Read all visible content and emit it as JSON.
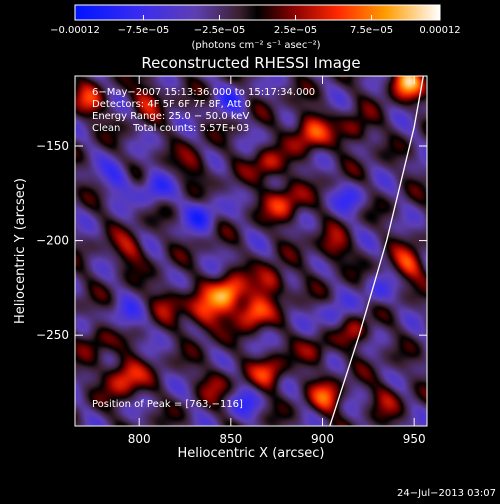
{
  "chart_data": {
    "type": "heatmap",
    "title": "Reconstructed RHESSI Image",
    "xlabel": "Heliocentric X (arcsec)",
    "ylabel": "Heliocentric Y (arcsec)",
    "xlim": [
      765,
      957
    ],
    "ylim": [
      -298,
      -113
    ],
    "x_ticks": [
      800,
      850,
      900,
      950
    ],
    "y_ticks": [
      -150,
      -200,
      -250
    ],
    "x_tick_labels": [
      "800",
      "850",
      "900",
      "950"
    ],
    "y_tick_labels": [
      "−150",
      "−200",
      "−250"
    ],
    "colorbar": {
      "min": -0.00012,
      "max": 0.00012,
      "tick_values": [
        -0.00012,
        -7.5e-05,
        -2.5e-05,
        2.5e-05,
        7.5e-05,
        0.00012
      ],
      "tick_labels": [
        "−0.00012",
        "−7.5e−05",
        "−2.5e−05",
        "2.5e−05",
        "7.5e−05",
        "0.00012"
      ],
      "units_label": "(photons cm⁻² s⁻¹ asec⁻²)"
    },
    "annotations": [
      "6−May−2007 15:13:36.000 to 15:17:34.000",
      "Detectors: 4F 5F 6F 7F 8F, Att 0",
      "Energy Range: 25.0 − 50.0 keV",
      "Clean    Total counts: 5.57E+03"
    ],
    "peak_label": "Position of Peak = [763,−116]",
    "peak_position": [
      763,
      -116
    ],
    "limb_curve": [
      [
        904,
        -298
      ],
      [
        920,
        -250
      ],
      [
        935,
        -200
      ],
      [
        950,
        -140
      ],
      [
        955,
        -113
      ]
    ],
    "image_sources": [
      {
        "x": 849,
        "y": -228,
        "amp": 0.000115,
        "sigma": 6
      },
      {
        "x": 836,
        "y": -238,
        "amp": 8e-05,
        "sigma": 7
      },
      {
        "x": 862,
        "y": -238,
        "amp": 9e-05,
        "sigma": 6
      },
      {
        "x": 872,
        "y": -222,
        "amp": 7e-05,
        "sigma": 6
      },
      {
        "x": 879,
        "y": -180,
        "amp": 7e-05,
        "sigma": 7
      },
      {
        "x": 893,
        "y": -143,
        "amp": 8e-05,
        "sigma": 7
      },
      {
        "x": 870,
        "y": -160,
        "amp": 6e-05,
        "sigma": 6
      },
      {
        "x": 772,
        "y": -127,
        "amp": 6e-05,
        "sigma": 6
      },
      {
        "x": 804,
        "y": -125,
        "amp": 5e-05,
        "sigma": 6
      },
      {
        "x": 830,
        "y": -160,
        "amp": 4e-05,
        "sigma": 6
      },
      {
        "x": 946,
        "y": -116,
        "amp": 0.00011,
        "sigma": 6
      },
      {
        "x": 918,
        "y": -142,
        "amp": 5e-05,
        "sigma": 6
      },
      {
        "x": 906,
        "y": -204,
        "amp": 5e-05,
        "sigma": 6
      },
      {
        "x": 918,
        "y": -248,
        "amp": 5e-05,
        "sigma": 6
      },
      {
        "x": 947,
        "y": -213,
        "amp": 7e-05,
        "sigma": 6
      },
      {
        "x": 792,
        "y": -272,
        "amp": 8e-05,
        "sigma": 7
      },
      {
        "x": 777,
        "y": -252,
        "amp": 4e-05,
        "sigma": 6
      },
      {
        "x": 842,
        "y": -275,
        "amp": 4e-05,
        "sigma": 6
      },
      {
        "x": 871,
        "y": -270,
        "amp": 7e-05,
        "sigma": 6
      },
      {
        "x": 902,
        "y": -283,
        "amp": 7e-05,
        "sigma": 6
      },
      {
        "x": 935,
        "y": -283,
        "amp": 4e-05,
        "sigma": 6
      },
      {
        "x": 795,
        "y": -205,
        "amp": 5e-05,
        "sigma": 6
      },
      {
        "x": 816,
        "y": -232,
        "amp": 4e-05,
        "sigma": 6
      },
      {
        "x": 897,
        "y": -258,
        "amp": 4e-05,
        "sigma": 6
      },
      {
        "x": 834,
        "y": -186,
        "amp": -6e-05,
        "sigma": 6
      },
      {
        "x": 808,
        "y": -173,
        "amp": -5e-05,
        "sigma": 6
      },
      {
        "x": 793,
        "y": -241,
        "amp": -4e-05,
        "sigma": 6
      },
      {
        "x": 788,
        "y": -167,
        "amp": -5e-05,
        "sigma": 6
      },
      {
        "x": 858,
        "y": -286,
        "amp": -4e-05,
        "sigma": 6
      },
      {
        "x": 906,
        "y": -241,
        "amp": -4e-05,
        "sigma": 6
      },
      {
        "x": 930,
        "y": -228,
        "amp": -4e-05,
        "sigma": 6
      },
      {
        "x": 915,
        "y": -178,
        "amp": -4e-05,
        "sigma": 6
      },
      {
        "x": 850,
        "y": -125,
        "amp": -4e-05,
        "sigma": 6
      }
    ]
  },
  "footer_timestamp": "24−Jul−2013 03:07"
}
